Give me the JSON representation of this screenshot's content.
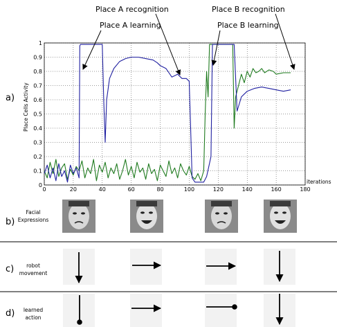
{
  "figure": {
    "panels": {
      "a": "a)",
      "b": "b)",
      "c": "c)",
      "d": "d)"
    },
    "annotations": {
      "place_a_recognition": "Place A recognition",
      "place_a_learning": "Place A learning",
      "place_b_recognition": "Place B recognition",
      "place_b_learning": "Place B learning"
    },
    "row_labels": {
      "b_line1": "Facial",
      "b_line2": "Expressions",
      "c_line1": "robot",
      "c_line2": "movement",
      "d_line1": "learned",
      "d_line2": "action"
    },
    "robot_movement": [
      "down-arrow-icon",
      "right-arrow-icon",
      "right-arrow-icon",
      "down-arrow-icon"
    ],
    "learned_action": [
      "stop-down-icon",
      "right-arrow-icon",
      "stop-right-icon",
      "down-arrow-icon"
    ],
    "colors": {
      "blue_series": "#1f1fa0",
      "green_series": "#1e7a1e"
    }
  },
  "chart_data": {
    "type": "line",
    "xlabel": "iterations",
    "ylabel": "Place Cells Activity",
    "xlim": [
      0,
      180
    ],
    "ylim": [
      0,
      1
    ],
    "xticks": [
      "0",
      "20",
      "40",
      "60",
      "80",
      "100",
      "120",
      "140",
      "160",
      "180"
    ],
    "yticks": [
      "0",
      "0.1",
      "0.2",
      "0.3",
      "0.4",
      "0.5",
      "0.6",
      "0.7",
      "0.8",
      "0.9",
      "1"
    ],
    "grid": true,
    "series": [
      {
        "color": "#1f1fa0",
        "x": [
          0,
          2,
          4,
          6,
          8,
          10,
          12,
          14,
          16,
          18,
          20,
          22,
          24,
          24.5,
          25,
          30,
          35,
          40,
          41,
          42,
          43,
          45,
          48,
          52,
          56,
          60,
          65,
          70,
          75,
          78,
          80,
          84,
          86,
          88,
          90,
          92,
          95,
          98,
          100,
          101,
          102,
          104,
          110,
          112,
          115,
          116,
          118,
          120,
          122,
          124,
          126,
          128,
          130,
          131,
          133,
          136,
          140,
          145,
          150,
          155,
          160,
          165,
          170
        ],
        "values": [
          0.08,
          0.14,
          0.05,
          0.12,
          0.03,
          0.15,
          0.06,
          0.1,
          0.02,
          0.14,
          0.08,
          0.12,
          0.05,
          0.98,
          0.99,
          0.99,
          0.99,
          0.99,
          0.6,
          0.3,
          0.6,
          0.75,
          0.82,
          0.87,
          0.89,
          0.9,
          0.9,
          0.89,
          0.88,
          0.86,
          0.84,
          0.82,
          0.79,
          0.76,
          0.77,
          0.78,
          0.75,
          0.75,
          0.73,
          0.4,
          0.05,
          0.02,
          0.02,
          0.06,
          0.2,
          0.99,
          0.99,
          0.99,
          0.99,
          0.99,
          0.99,
          0.99,
          0.99,
          0.99,
          0.52,
          0.62,
          0.66,
          0.68,
          0.69,
          0.68,
          0.67,
          0.66,
          0.67
        ]
      },
      {
        "color": "#1e7a1e",
        "x": [
          0,
          2,
          4,
          6,
          8,
          10,
          12,
          14,
          16,
          18,
          20,
          22,
          24,
          26,
          28,
          30,
          32,
          34,
          36,
          38,
          40,
          42,
          44,
          46,
          48,
          50,
          52,
          54,
          56,
          58,
          60,
          62,
          64,
          66,
          68,
          70,
          72,
          74,
          76,
          78,
          80,
          82,
          84,
          86,
          88,
          90,
          92,
          94,
          96,
          98,
          100,
          102,
          104,
          106,
          108,
          110,
          111,
          112,
          113,
          114,
          116,
          118,
          120,
          122,
          124,
          126,
          128,
          130,
          131,
          132,
          134,
          136,
          138,
          140,
          142,
          144,
          146,
          148,
          150,
          152,
          155,
          158,
          160,
          165,
          170
        ],
        "values": [
          0.1,
          0.05,
          0.16,
          0.08,
          0.18,
          0.06,
          0.12,
          0.15,
          0.04,
          0.11,
          0.07,
          0.13,
          0.1,
          0.17,
          0.05,
          0.12,
          0.08,
          0.18,
          0.03,
          0.14,
          0.09,
          0.16,
          0.05,
          0.12,
          0.08,
          0.15,
          0.04,
          0.1,
          0.18,
          0.07,
          0.13,
          0.05,
          0.16,
          0.09,
          0.12,
          0.04,
          0.15,
          0.08,
          0.11,
          0.03,
          0.14,
          0.1,
          0.06,
          0.17,
          0.08,
          0.12,
          0.05,
          0.15,
          0.1,
          0.07,
          0.13,
          0.06,
          0.04,
          0.08,
          0.03,
          0.1,
          0.5,
          0.8,
          0.62,
          0.99,
          0.99,
          0.99,
          0.99,
          0.99,
          0.99,
          0.99,
          0.99,
          0.99,
          0.4,
          0.62,
          0.7,
          0.78,
          0.72,
          0.8,
          0.76,
          0.82,
          0.79,
          0.8,
          0.82,
          0.79,
          0.81,
          0.8,
          0.78,
          0.79,
          0.79
        ]
      }
    ]
  }
}
